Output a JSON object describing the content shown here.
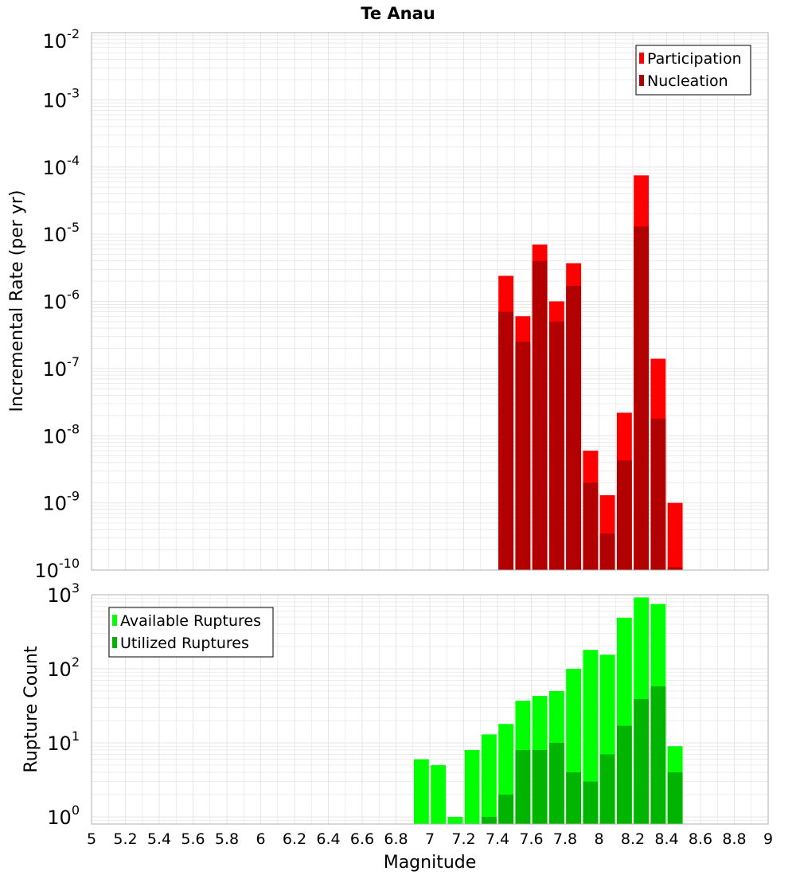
{
  "title": "Te Anau",
  "xlabel": "Magnitude",
  "x_ticks": [
    "5",
    "5.2",
    "5.4",
    "5.6",
    "5.8",
    "6",
    "6.2",
    "6.4",
    "6.6",
    "6.8",
    "7",
    "7.2",
    "7.4",
    "7.6",
    "7.8",
    "8",
    "8.2",
    "8.4",
    "8.6",
    "8.8",
    "9"
  ],
  "colors": {
    "participation": "#ff0000",
    "nucleation": "#b20000",
    "available": "#00ff00",
    "utilized": "#00b400",
    "grid": "#e6e6e6",
    "axis": "#b0b0b0"
  },
  "chart_data": [
    {
      "type": "bar",
      "ylabel": "Incremental Rate (per yr)",
      "yscale": "log",
      "ylim": [
        1e-10,
        0.01
      ],
      "y_tick_labels": [
        {
          "base": "10",
          "exp": "-10"
        },
        {
          "base": "10",
          "exp": "-9"
        },
        {
          "base": "10",
          "exp": "-8"
        },
        {
          "base": "10",
          "exp": "-7"
        },
        {
          "base": "10",
          "exp": "-6"
        },
        {
          "base": "10",
          "exp": "-5"
        },
        {
          "base": "10",
          "exp": "-4"
        },
        {
          "base": "10",
          "exp": "-3"
        },
        {
          "base": "10",
          "exp": "-2"
        }
      ],
      "legend": {
        "position": "top-right",
        "entries": [
          "Participation",
          "Nucleation"
        ]
      },
      "x": [
        7.45,
        7.55,
        7.65,
        7.75,
        7.85,
        7.95,
        8.05,
        8.15,
        8.25,
        8.35,
        8.45
      ],
      "series": [
        {
          "name": "Participation",
          "values": [
            2.4e-06,
            6e-07,
            7e-06,
            1e-06,
            3.7e-06,
            6e-09,
            1.3e-09,
            2.2e-08,
            7.5e-05,
            1.4e-07,
            1e-09
          ]
        },
        {
          "name": "Nucleation",
          "values": [
            7e-07,
            2.5e-07,
            4e-06,
            5e-07,
            1.7e-06,
            2e-09,
            3.5e-10,
            4.3e-09,
            1.3e-05,
            1.8e-08,
            1.1e-10
          ]
        }
      ]
    },
    {
      "type": "bar",
      "ylabel": "Rupture Count",
      "yscale": "log",
      "ylim": [
        0.8,
        1000
      ],
      "y_tick_labels": [
        {
          "base": "10",
          "exp": "0",
          "value": 1
        },
        {
          "base": "10",
          "exp": "1",
          "value": 10
        },
        {
          "base": "10",
          "exp": "2",
          "value": 100
        },
        {
          "base": "10",
          "exp": "3",
          "value": 1000
        }
      ],
      "legend": {
        "position": "top-left",
        "entries": [
          "Available Ruptures",
          "Utilized Ruptures"
        ]
      },
      "x": [
        6.95,
        7.05,
        7.15,
        7.25,
        7.35,
        7.45,
        7.55,
        7.65,
        7.75,
        7.85,
        7.95,
        8.05,
        8.15,
        8.25,
        8.35,
        8.45
      ],
      "series": [
        {
          "name": "Available Ruptures",
          "values": [
            6,
            5,
            1,
            8,
            13,
            18,
            37,
            43,
            50,
            100,
            180,
            155,
            490,
            920,
            750,
            9
          ]
        },
        {
          "name": "Utilized Ruptures",
          "values": [
            0,
            0,
            0,
            0,
            1,
            2,
            8,
            8,
            10,
            4,
            3,
            7,
            17,
            39,
            58,
            4
          ]
        }
      ]
    }
  ]
}
